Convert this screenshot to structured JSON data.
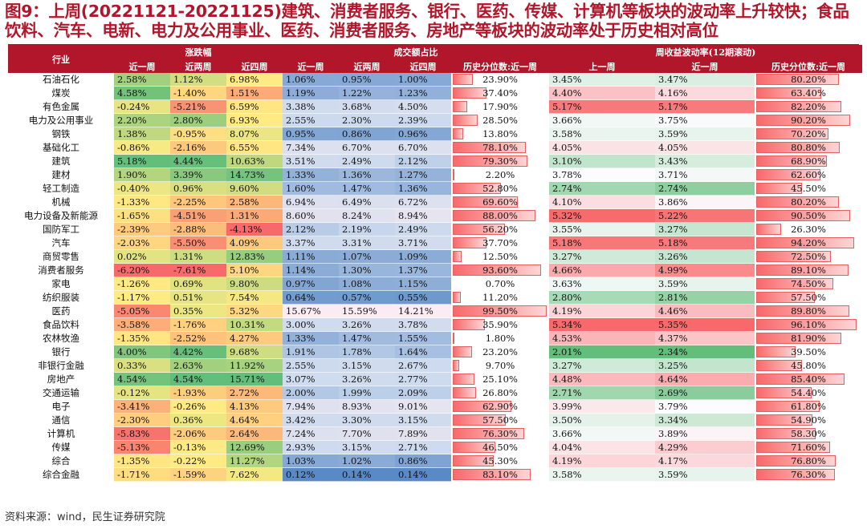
{
  "title": "图9：上周(20221121-20221125)建筑、消费者服务、银行、医药、传媒、计算机等板块的波动率上升较快；食品饮料、汽车、电新、电力及公用事业、医药、消费者服务、房地产等板块的波动率处于历史相对高位",
  "source": "资料来源：wind，民生证券研究院",
  "headers": {
    "industry": "行业",
    "groups": [
      "涨跌幅",
      "成交额占比",
      "周收益波动率(12期滚动)"
    ],
    "sub": [
      "近一周",
      "近两周",
      "近四周",
      "近一周",
      "近两周",
      "近四周",
      "历史分位数:近一周",
      "上一周",
      "近一周",
      "历史分位数:近一周"
    ]
  },
  "rows": [
    {
      "name": "石油石化",
      "r1": "2.58%",
      "r2": "1.12%",
      "r4": "6.98%",
      "t1": "1.06%",
      "t2": "0.95%",
      "t4": "1.00%",
      "tp": "23.90%",
      "vp": "3.45%",
      "v1": "3.47%",
      "vq": "80.20%"
    },
    {
      "name": "煤炭",
      "r1": "4.58%",
      "r2": "-1.40%",
      "r4": "1.51%",
      "t1": "1.19%",
      "t2": "1.22%",
      "t4": "1.23%",
      "tp": "37.40%",
      "vp": "4.40%",
      "v1": "4.16%",
      "vq": "63.40%"
    },
    {
      "name": "有色金属",
      "r1": "-0.24%",
      "r2": "-5.21%",
      "r4": "6.59%",
      "t1": "3.38%",
      "t2": "3.68%",
      "t4": "4.50%",
      "tp": "17.90%",
      "vp": "5.17%",
      "v1": "5.17%",
      "vq": "82.20%"
    },
    {
      "name": "电力及公用事业",
      "r1": "2.20%",
      "r2": "2.80%",
      "r4": "6.93%",
      "t1": "2.55%",
      "t2": "2.30%",
      "t4": "2.39%",
      "tp": "28.50%",
      "vp": "3.66%",
      "v1": "3.75%",
      "vq": "90.20%"
    },
    {
      "name": "钢铁",
      "r1": "1.38%",
      "r2": "-0.95%",
      "r4": "8.07%",
      "t1": "0.95%",
      "t2": "0.86%",
      "t4": "0.96%",
      "tp": "13.80%",
      "vp": "3.58%",
      "v1": "3.59%",
      "vq": "70.20%"
    },
    {
      "name": "基础化工",
      "r1": "-0.86%",
      "r2": "-2.16%",
      "r4": "6.55%",
      "t1": "7.34%",
      "t2": "6.70%",
      "t4": "6.70%",
      "tp": "78.10%",
      "vp": "4.05%",
      "v1": "4.05%",
      "vq": "80.80%"
    },
    {
      "name": "建筑",
      "r1": "5.18%",
      "r2": "4.44%",
      "r4": "10.63%",
      "t1": "3.51%",
      "t2": "2.49%",
      "t4": "2.12%",
      "tp": "79.30%",
      "vp": "3.10%",
      "v1": "3.43%",
      "vq": "68.90%"
    },
    {
      "name": "建材",
      "r1": "1.90%",
      "r2": "3.39%",
      "r4": "14.73%",
      "t1": "1.33%",
      "t2": "1.36%",
      "t4": "1.27%",
      "tp": "2.20%",
      "vp": "3.78%",
      "v1": "3.71%",
      "vq": "62.60%"
    },
    {
      "name": "轻工制造",
      "r1": "-0.40%",
      "r2": "0.96%",
      "r4": "9.60%",
      "t1": "1.60%",
      "t2": "1.47%",
      "t4": "1.36%",
      "tp": "52.80%",
      "vp": "2.74%",
      "v1": "2.74%",
      "vq": "45.50%"
    },
    {
      "name": "机械",
      "r1": "-1.33%",
      "r2": "-2.25%",
      "r4": "2.58%",
      "t1": "6.94%",
      "t2": "6.49%",
      "t4": "6.72%",
      "tp": "69.60%",
      "vp": "4.10%",
      "v1": "3.86%",
      "vq": "80.20%"
    },
    {
      "name": "电力设备及新能源",
      "r1": "-1.65%",
      "r2": "-4.51%",
      "r4": "1.31%",
      "t1": "8.60%",
      "t2": "8.24%",
      "t4": "8.94%",
      "tp": "88.00%",
      "vp": "5.32%",
      "v1": "5.22%",
      "vq": "90.50%"
    },
    {
      "name": "国防军工",
      "r1": "-2.39%",
      "r2": "-2.88%",
      "r4": "-4.13%",
      "t1": "2.12%",
      "t2": "2.19%",
      "t4": "2.49%",
      "tp": "56.20%",
      "vp": "3.55%",
      "v1": "3.27%",
      "vq": "26.30%"
    },
    {
      "name": "汽车",
      "r1": "-2.03%",
      "r2": "-5.50%",
      "r4": "4.09%",
      "t1": "3.37%",
      "t2": "3.31%",
      "t4": "3.71%",
      "tp": "37.70%",
      "vp": "5.18%",
      "v1": "5.18%",
      "vq": "94.20%"
    },
    {
      "name": "商贸零售",
      "r1": "0.02%",
      "r2": "1.31%",
      "r4": "12.83%",
      "t1": "1.11%",
      "t2": "1.07%",
      "t4": "1.09%",
      "tp": "12.50%",
      "vp": "3.27%",
      "v1": "3.26%",
      "vq": "72.50%"
    },
    {
      "name": "消费者服务",
      "r1": "-6.20%",
      "r2": "-7.61%",
      "r4": "5.10%",
      "t1": "1.14%",
      "t2": "1.30%",
      "t4": "1.37%",
      "tp": "93.60%",
      "vp": "4.66%",
      "v1": "4.99%",
      "vq": "89.10%"
    },
    {
      "name": "家电",
      "r1": "-1.26%",
      "r2": "0.69%",
      "r4": "9.80%",
      "t1": "0.97%",
      "t2": "1.08%",
      "t4": "1.15%",
      "tp": "0.70%",
      "vp": "3.63%",
      "v1": "3.59%",
      "vq": "74.50%"
    },
    {
      "name": "纺织服装",
      "r1": "-1.17%",
      "r2": "0.51%",
      "r4": "7.54%",
      "t1": "0.64%",
      "t2": "0.57%",
      "t4": "0.55%",
      "tp": "11.20%",
      "vp": "2.80%",
      "v1": "2.81%",
      "vq": "57.50%"
    },
    {
      "name": "医药",
      "r1": "-5.05%",
      "r2": "0.35%",
      "r4": "5.32%",
      "t1": "15.67%",
      "t2": "15.59%",
      "t4": "14.21%",
      "tp": "99.50%",
      "vp": "4.19%",
      "v1": "4.46%",
      "vq": "89.80%"
    },
    {
      "name": "食品饮料",
      "r1": "-3.58%",
      "r2": "-1.76%",
      "r4": "10.31%",
      "t1": "3.00%",
      "t2": "3.26%",
      "t4": "3.78%",
      "tp": "35.90%",
      "vp": "5.34%",
      "v1": "5.35%",
      "vq": "96.10%"
    },
    {
      "name": "农林牧渔",
      "r1": "-1.35%",
      "r2": "-2.52%",
      "r4": "4.27%",
      "t1": "1.33%",
      "t2": "1.47%",
      "t4": "1.55%",
      "tp": "1.80%",
      "vp": "4.53%",
      "v1": "4.37%",
      "vq": "81.90%"
    },
    {
      "name": "银行",
      "r1": "4.00%",
      "r2": "4.42%",
      "r4": "9.68%",
      "t1": "1.91%",
      "t2": "1.78%",
      "t4": "1.64%",
      "tp": "23.20%",
      "vp": "2.01%",
      "v1": "2.34%",
      "vq": "39.50%"
    },
    {
      "name": "非银行金融",
      "r1": "0.33%",
      "r2": "2.63%",
      "r4": "11.92%",
      "t1": "2.55%",
      "t2": "3.15%",
      "t4": "2.67%",
      "tp": "9.70%",
      "vp": "3.27%",
      "v1": "3.25%",
      "vq": "45.80%"
    },
    {
      "name": "房地产",
      "r1": "4.54%",
      "r2": "4.54%",
      "r4": "15.71%",
      "t1": "3.07%",
      "t2": "3.26%",
      "t4": "2.77%",
      "tp": "25.10%",
      "vp": "4.48%",
      "v1": "4.64%",
      "vq": "85.40%"
    },
    {
      "name": "交通运输",
      "r1": "-0.12%",
      "r2": "-1.93%",
      "r4": "2.72%",
      "t1": "2.00%",
      "t2": "1.99%",
      "t4": "2.09%",
      "tp": "26.80%",
      "vp": "2.71%",
      "v1": "2.69%",
      "vq": "54.40%"
    },
    {
      "name": "电子",
      "r1": "-3.41%",
      "r2": "-0.26%",
      "r4": "4.13%",
      "t1": "7.94%",
      "t2": "8.93%",
      "t4": "9.01%",
      "tp": "62.90%",
      "vp": "3.99%",
      "v1": "3.79%",
      "vq": "61.80%"
    },
    {
      "name": "通信",
      "r1": "-2.30%",
      "r2": "0.36%",
      "r4": "4.64%",
      "t1": "3.42%",
      "t2": "3.30%",
      "t4": "3.15%",
      "tp": "57.50%",
      "vp": "3.50%",
      "v1": "3.34%",
      "vq": "54.90%"
    },
    {
      "name": "计算机",
      "r1": "-5.83%",
      "r2": "-2.06%",
      "r4": "2.64%",
      "t1": "7.24%",
      "t2": "7.70%",
      "t4": "7.89%",
      "tp": "76.30%",
      "vp": "3.66%",
      "v1": "3.89%",
      "vq": "58.30%"
    },
    {
      "name": "传媒",
      "r1": "-5.13%",
      "r2": "-0.13%",
      "r4": "12.69%",
      "t1": "2.93%",
      "t2": "3.15%",
      "t4": "2.71%",
      "tp": "46.50%",
      "vp": "4.04%",
      "v1": "4.29%",
      "vq": "71.60%"
    },
    {
      "name": "综合",
      "r1": "-1.35%",
      "r2": "-0.22%",
      "r4": "11.27%",
      "t1": "1.03%",
      "t2": "1.02%",
      "t4": "0.86%",
      "tp": "45.30%",
      "vp": "4.19%",
      "v1": "4.17%",
      "vq": "76.80%"
    },
    {
      "name": "综合金融",
      "r1": "-1.71%",
      "r2": "-1.59%",
      "r4": "7.62%",
      "t1": "0.12%",
      "t2": "0.14%",
      "t4": "0.14%",
      "tp": "83.10%",
      "vp": "3.58%",
      "v1": "3.59%",
      "vq": "76.30%"
    }
  ]
}
